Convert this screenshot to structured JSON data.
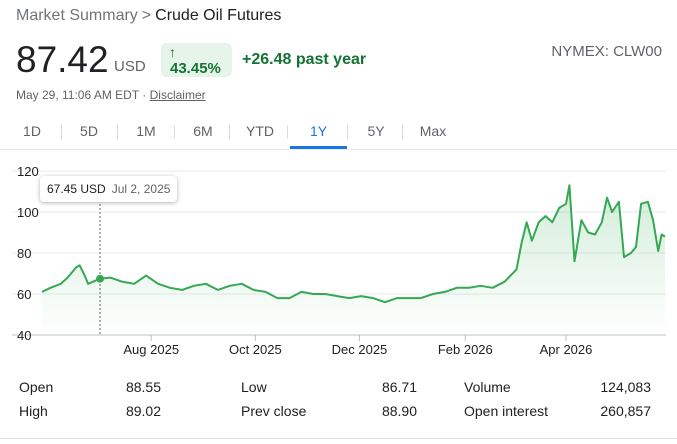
{
  "breadcrumb": {
    "parent": "Market Summary",
    "separator": ">",
    "current": "Crude Oil Futures"
  },
  "quote": {
    "price": "87.42",
    "currency": "USD",
    "change_arrow": "↑",
    "change_pct": "43.45%",
    "change_abs": "+26.48 past year",
    "exchange": "NYMEX: CLW00",
    "timestamp": "May 29, 11:06 AM EDT · ",
    "disclaimer": "Disclaimer"
  },
  "tabs": [
    "1D",
    "5D",
    "1M",
    "6M",
    "YTD",
    "1Y",
    "5Y",
    "Max"
  ],
  "active_tab": "1Y",
  "tooltip": {
    "value": "67.45 USD",
    "date": "Jul 2, 2025"
  },
  "colors": {
    "up": "#137333",
    "line": "#34a853",
    "accent": "#1a73e8",
    "badge_bg": "#e6f4ea"
  },
  "chart_data": {
    "type": "area",
    "title": "",
    "xlabel": "",
    "ylabel": "",
    "ylim": [
      40,
      120
    ],
    "yticks": [
      40,
      60,
      80,
      100,
      120
    ],
    "xticks": [
      {
        "label": "Aug 2025",
        "date": "2025-08-01"
      },
      {
        "label": "Oct 2025",
        "date": "2025-10-01"
      },
      {
        "label": "Dec 2025",
        "date": "2025-12-01"
      },
      {
        "label": "Feb 2026",
        "date": "2026-02-01"
      },
      {
        "label": "Apr 2026",
        "date": "2026-04-01"
      }
    ],
    "grid": "horizontal",
    "series": [
      {
        "points": [
          [
            "2025-05-29",
            61
          ],
          [
            "2025-06-03",
            63
          ],
          [
            "2025-06-09",
            65
          ],
          [
            "2025-06-13",
            68
          ],
          [
            "2025-06-18",
            73
          ],
          [
            "2025-06-20",
            74
          ],
          [
            "2025-06-23",
            69
          ],
          [
            "2025-06-25",
            65
          ],
          [
            "2025-07-02",
            67.45
          ],
          [
            "2025-07-08",
            68
          ],
          [
            "2025-07-15",
            66
          ],
          [
            "2025-07-22",
            65
          ],
          [
            "2025-07-29",
            69
          ],
          [
            "2025-08-05",
            65
          ],
          [
            "2025-08-12",
            63
          ],
          [
            "2025-08-19",
            62
          ],
          [
            "2025-08-26",
            64
          ],
          [
            "2025-09-02",
            65
          ],
          [
            "2025-09-09",
            62
          ],
          [
            "2025-09-16",
            64
          ],
          [
            "2025-09-23",
            65
          ],
          [
            "2025-09-30",
            62
          ],
          [
            "2025-10-07",
            61
          ],
          [
            "2025-10-14",
            58
          ],
          [
            "2025-10-21",
            58
          ],
          [
            "2025-10-28",
            61
          ],
          [
            "2025-11-04",
            60
          ],
          [
            "2025-11-11",
            60
          ],
          [
            "2025-11-18",
            59
          ],
          [
            "2025-11-25",
            58
          ],
          [
            "2025-12-02",
            59
          ],
          [
            "2025-12-09",
            58
          ],
          [
            "2025-12-16",
            56
          ],
          [
            "2025-12-23",
            58
          ],
          [
            "2025-12-30",
            58
          ],
          [
            "2026-01-06",
            58
          ],
          [
            "2026-01-13",
            60
          ],
          [
            "2026-01-20",
            61
          ],
          [
            "2026-01-27",
            63
          ],
          [
            "2026-02-03",
            63
          ],
          [
            "2026-02-10",
            64
          ],
          [
            "2026-02-17",
            63
          ],
          [
            "2026-02-24",
            66
          ],
          [
            "2026-03-03",
            72
          ],
          [
            "2026-03-06",
            85
          ],
          [
            "2026-03-09",
            95
          ],
          [
            "2026-03-12",
            86
          ],
          [
            "2026-03-16",
            95
          ],
          [
            "2026-03-20",
            98
          ],
          [
            "2026-03-24",
            95
          ],
          [
            "2026-03-28",
            102
          ],
          [
            "2026-04-01",
            104
          ],
          [
            "2026-04-03",
            113
          ],
          [
            "2026-04-06",
            76
          ],
          [
            "2026-04-10",
            96
          ],
          [
            "2026-04-14",
            90
          ],
          [
            "2026-04-18",
            89
          ],
          [
            "2026-04-22",
            95
          ],
          [
            "2026-04-25",
            107
          ],
          [
            "2026-04-28",
            100
          ],
          [
            "2026-05-02",
            105
          ],
          [
            "2026-05-05",
            78
          ],
          [
            "2026-05-09",
            80
          ],
          [
            "2026-05-12",
            83
          ],
          [
            "2026-05-15",
            104
          ],
          [
            "2026-05-19",
            105
          ],
          [
            "2026-05-22",
            96
          ],
          [
            "2026-05-25",
            81
          ],
          [
            "2026-05-27",
            89
          ],
          [
            "2026-05-29",
            88
          ]
        ]
      }
    ],
    "highlight_point": {
      "date": "2025-07-02",
      "value": 67.45
    }
  },
  "stats": [
    {
      "label": "Open",
      "value": "88.55"
    },
    {
      "label": "High",
      "value": "89.02"
    },
    {
      "label": "Low",
      "value": "86.71"
    },
    {
      "label": "Prev close",
      "value": "88.90"
    },
    {
      "label": "Volume",
      "value": "124,083"
    },
    {
      "label": "Open interest",
      "value": "260,857"
    }
  ]
}
